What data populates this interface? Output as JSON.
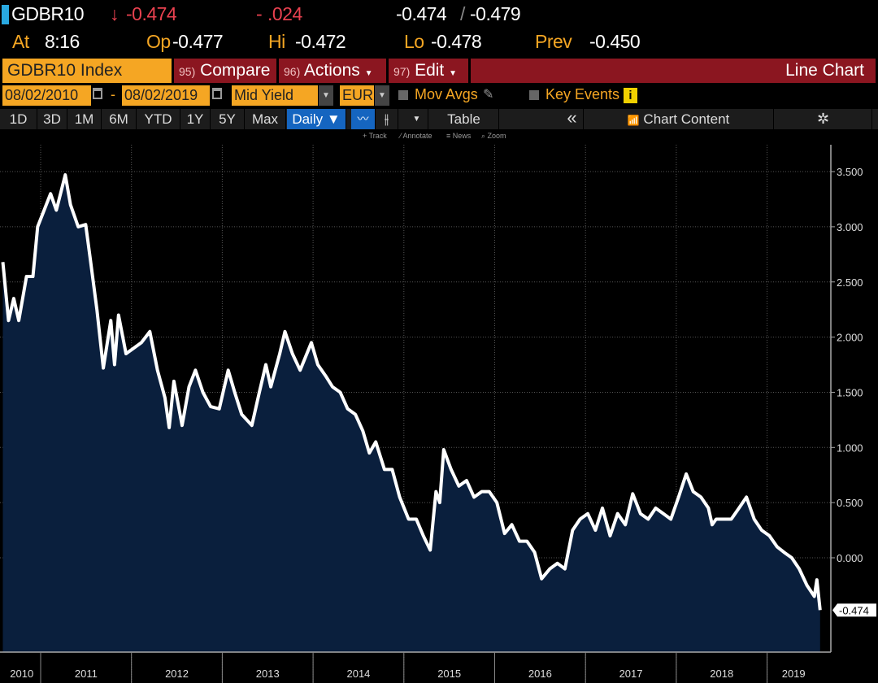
{
  "quote": {
    "ticker": "GDBR10",
    "arrow": "↓",
    "last": "-0.474",
    "change": ".024",
    "change_sign": "-",
    "bid_ask": "-0.474",
    "bid_ask_2": "-0.479",
    "at_label": "At",
    "at_value": "8:16",
    "op_label": "Op",
    "op_value": "-0.477",
    "hi_label": "Hi",
    "hi_value": "-0.472",
    "lo_label": "Lo",
    "lo_value": "-0.478",
    "prev_label": "Prev",
    "prev_value": "-0.450"
  },
  "toolbar": {
    "security": "GDBR10 Index",
    "compare_num": "95)",
    "compare": "Compare",
    "actions_num": "96)",
    "actions": "Actions",
    "edit_num": "97)",
    "edit": "Edit",
    "chart_type": "Line Chart"
  },
  "settings": {
    "start_date": "08/02/2010",
    "dash": "-",
    "end_date": "08/02/2019",
    "field": "Mid Yield",
    "currency": "EUR",
    "mov_avgs": "Mov Avgs",
    "key_events": "Key Events",
    "info": "i"
  },
  "periods": [
    "1D",
    "3D",
    "1M",
    "6M",
    "YTD",
    "1Y",
    "5Y",
    "Max"
  ],
  "frequency": "Daily ▼",
  "table": "Table",
  "collapse": "«",
  "chart_content": "Chart Content",
  "tools": {
    "track": "+ Track",
    "annotate": "⁄ Annotate",
    "news": "≡ News",
    "zoom": "⌕ Zoom"
  },
  "colors": {
    "accent_orange": "#f5a623",
    "button_red": "#8b1620",
    "line": "#ffffff",
    "fill": "#0a1f3d",
    "down": "#e8414f",
    "blue": "#1565c0"
  },
  "chart_data": {
    "type": "area",
    "ylim": [
      -0.85,
      3.85
    ],
    "grid": true,
    "yticks": [
      "3.500",
      "3.000",
      "2.500",
      "2.000",
      "1.500",
      "1.000",
      "0.500",
      "0.000"
    ],
    "ytick_values": [
      3.5,
      3.0,
      2.5,
      2.0,
      1.5,
      1.0,
      0.5,
      0.0
    ],
    "xticks": [
      "2010",
      "2011",
      "2012",
      "2013",
      "2014",
      "2015",
      "2016",
      "2017",
      "2018",
      "2019"
    ],
    "last_value_label": "-0.474",
    "series": [
      {
        "points": [
          [
            "2010-08-02",
            2.68
          ],
          [
            "2010-08-25",
            2.15
          ],
          [
            "2010-09-15",
            2.35
          ],
          [
            "2010-10-05",
            2.15
          ],
          [
            "2010-11-05",
            2.55
          ],
          [
            "2010-12-01",
            2.55
          ],
          [
            "2010-12-20",
            3.0
          ],
          [
            "2011-01-15",
            3.15
          ],
          [
            "2011-02-10",
            3.3
          ],
          [
            "2011-03-05",
            3.15
          ],
          [
            "2011-04-10",
            3.47
          ],
          [
            "2011-05-01",
            3.2
          ],
          [
            "2011-06-01",
            3.0
          ],
          [
            "2011-07-01",
            3.02
          ],
          [
            "2011-07-20",
            2.7
          ],
          [
            "2011-08-15",
            2.25
          ],
          [
            "2011-09-10",
            1.72
          ],
          [
            "2011-10-10",
            2.15
          ],
          [
            "2011-10-25",
            1.75
          ],
          [
            "2011-11-10",
            2.2
          ],
          [
            "2011-12-10",
            1.85
          ],
          [
            "2012-01-10",
            1.9
          ],
          [
            "2012-02-10",
            1.95
          ],
          [
            "2012-03-15",
            2.05
          ],
          [
            "2012-04-15",
            1.7
          ],
          [
            "2012-05-15",
            1.45
          ],
          [
            "2012-06-01",
            1.18
          ],
          [
            "2012-06-20",
            1.6
          ],
          [
            "2012-07-23",
            1.2
          ],
          [
            "2012-08-20",
            1.55
          ],
          [
            "2012-09-15",
            1.7
          ],
          [
            "2012-10-15",
            1.5
          ],
          [
            "2012-11-15",
            1.37
          ],
          [
            "2012-12-20",
            1.35
          ],
          [
            "2013-01-25",
            1.7
          ],
          [
            "2013-02-20",
            1.5
          ],
          [
            "2013-03-20",
            1.3
          ],
          [
            "2013-04-30",
            1.2
          ],
          [
            "2013-05-30",
            1.5
          ],
          [
            "2013-06-25",
            1.75
          ],
          [
            "2013-07-15",
            1.55
          ],
          [
            "2013-08-20",
            1.85
          ],
          [
            "2013-09-10",
            2.05
          ],
          [
            "2013-10-10",
            1.85
          ],
          [
            "2013-11-10",
            1.7
          ],
          [
            "2013-12-25",
            1.95
          ],
          [
            "2014-01-20",
            1.75
          ],
          [
            "2014-02-20",
            1.65
          ],
          [
            "2014-03-20",
            1.55
          ],
          [
            "2014-04-20",
            1.5
          ],
          [
            "2014-05-20",
            1.35
          ],
          [
            "2014-06-20",
            1.3
          ],
          [
            "2014-07-20",
            1.15
          ],
          [
            "2014-08-15",
            0.95
          ],
          [
            "2014-09-10",
            1.05
          ],
          [
            "2014-10-15",
            0.8
          ],
          [
            "2014-11-15",
            0.8
          ],
          [
            "2014-12-15",
            0.55
          ],
          [
            "2015-01-20",
            0.35
          ],
          [
            "2015-02-20",
            0.35
          ],
          [
            "2015-03-20",
            0.2
          ],
          [
            "2015-04-17",
            0.07
          ],
          [
            "2015-05-10",
            0.6
          ],
          [
            "2015-05-25",
            0.5
          ],
          [
            "2015-06-10",
            0.98
          ],
          [
            "2015-07-10",
            0.8
          ],
          [
            "2015-08-10",
            0.65
          ],
          [
            "2015-09-10",
            0.7
          ],
          [
            "2015-10-10",
            0.55
          ],
          [
            "2015-11-10",
            0.6
          ],
          [
            "2015-12-10",
            0.6
          ],
          [
            "2016-01-10",
            0.5
          ],
          [
            "2016-02-10",
            0.22
          ],
          [
            "2016-03-10",
            0.3
          ],
          [
            "2016-04-10",
            0.15
          ],
          [
            "2016-05-10",
            0.15
          ],
          [
            "2016-06-10",
            0.05
          ],
          [
            "2016-07-08",
            -0.19
          ],
          [
            "2016-08-10",
            -0.1
          ],
          [
            "2016-09-10",
            -0.05
          ],
          [
            "2016-10-10",
            -0.1
          ],
          [
            "2016-11-10",
            0.25
          ],
          [
            "2016-12-10",
            0.35
          ],
          [
            "2017-01-10",
            0.4
          ],
          [
            "2017-02-10",
            0.25
          ],
          [
            "2017-03-10",
            0.45
          ],
          [
            "2017-04-10",
            0.2
          ],
          [
            "2017-05-10",
            0.4
          ],
          [
            "2017-06-10",
            0.3
          ],
          [
            "2017-07-10",
            0.58
          ],
          [
            "2017-08-10",
            0.4
          ],
          [
            "2017-09-10",
            0.35
          ],
          [
            "2017-10-10",
            0.45
          ],
          [
            "2017-11-10",
            0.4
          ],
          [
            "2017-12-10",
            0.35
          ],
          [
            "2018-01-10",
            0.55
          ],
          [
            "2018-02-10",
            0.76
          ],
          [
            "2018-03-10",
            0.6
          ],
          [
            "2018-04-10",
            0.55
          ],
          [
            "2018-05-10",
            0.45
          ],
          [
            "2018-05-25",
            0.3
          ],
          [
            "2018-06-10",
            0.35
          ],
          [
            "2018-07-10",
            0.35
          ],
          [
            "2018-08-10",
            0.35
          ],
          [
            "2018-09-10",
            0.45
          ],
          [
            "2018-10-10",
            0.55
          ],
          [
            "2018-11-10",
            0.35
          ],
          [
            "2018-12-10",
            0.25
          ],
          [
            "2019-01-10",
            0.2
          ],
          [
            "2019-02-10",
            0.1
          ],
          [
            "2019-03-10",
            0.05
          ],
          [
            "2019-04-10",
            0.0
          ],
          [
            "2019-05-10",
            -0.1
          ],
          [
            "2019-06-10",
            -0.25
          ],
          [
            "2019-07-10",
            -0.35
          ],
          [
            "2019-07-20",
            -0.2
          ],
          [
            "2019-08-02",
            -0.474
          ]
        ]
      }
    ]
  }
}
